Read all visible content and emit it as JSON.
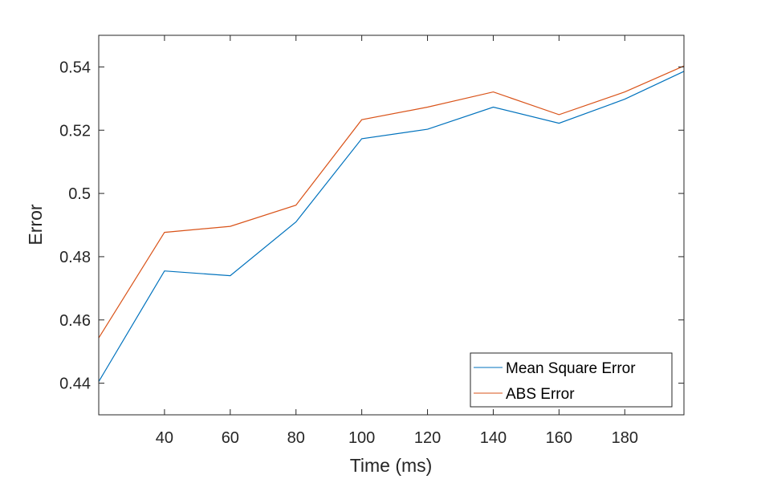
{
  "chart_data": {
    "type": "line",
    "xlabel": "Time (ms)",
    "ylabel": "Error",
    "xlim": [
      20,
      198
    ],
    "ylim": [
      0.43,
      0.55
    ],
    "xticks": [
      40,
      60,
      80,
      100,
      120,
      140,
      160,
      180
    ],
    "yticks": [
      0.44,
      0.46,
      0.48,
      0.5,
      0.52,
      0.54
    ],
    "ytick_labels": [
      "0.44",
      "0.46",
      "0.48",
      "0.5",
      "0.52",
      "0.54"
    ],
    "x": [
      20,
      40,
      60,
      80,
      100,
      120,
      140,
      160,
      180,
      198
    ],
    "series": [
      {
        "name": "Mean Square Error",
        "color": "#0072BD",
        "values": [
          0.4405,
          0.4755,
          0.474,
          0.491,
          0.5173,
          0.5203,
          0.5273,
          0.5222,
          0.5298,
          0.5386
        ]
      },
      {
        "name": "ABS Error",
        "color": "#D95319",
        "values": [
          0.4543,
          0.4877,
          0.4896,
          0.4963,
          0.5233,
          0.5273,
          0.5321,
          0.5249,
          0.5321,
          0.5403
        ]
      }
    ],
    "grid": false,
    "box": true,
    "legend_position": "bottom-right"
  }
}
